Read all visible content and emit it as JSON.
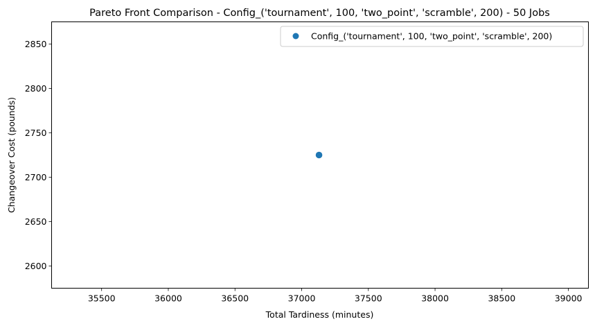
{
  "chart_data": {
    "type": "scatter",
    "title": "Pareto Front Comparison - Config_('tournament', 100, 'two_point', 'scramble', 200) - 50 Jobs",
    "xlabel": "Total Tardiness (minutes)",
    "ylabel": "Changeover Cost (pounds)",
    "xlim": [
      35125,
      39150
    ],
    "ylim": [
      2575,
      2875
    ],
    "xticks": [
      35500,
      36000,
      36500,
      37000,
      37500,
      38000,
      38500,
      39000
    ],
    "yticks": [
      2600,
      2650,
      2700,
      2750,
      2800,
      2850
    ],
    "grid": false,
    "legend_position": "top-right",
    "series": [
      {
        "name": "Config_('tournament', 100, 'two_point', 'scramble', 200)",
        "color": "#1f77b4",
        "x": [
          37130
        ],
        "y": [
          2725
        ]
      }
    ]
  }
}
